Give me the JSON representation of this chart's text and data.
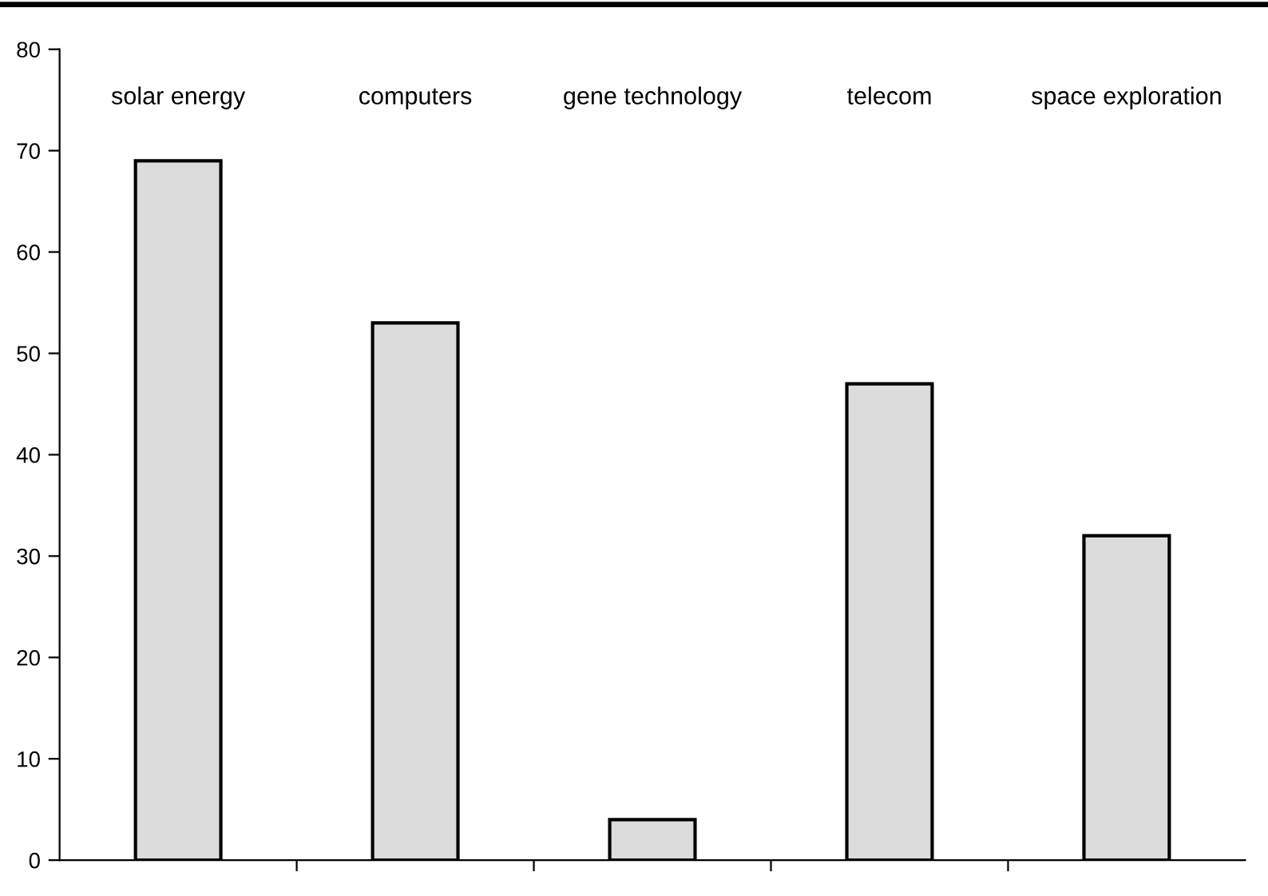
{
  "chart_data": {
    "type": "bar",
    "categories": [
      "solar energy",
      "computers",
      "gene technology",
      "telecom",
      "space exploration"
    ],
    "values": [
      69,
      53,
      4,
      47,
      32
    ],
    "color": "#dcdcdc",
    "ylim": [
      0,
      80
    ],
    "yticks": [
      0,
      10,
      20,
      30,
      40,
      50,
      60,
      70,
      80
    ],
    "grid": false,
    "legend": false
  }
}
